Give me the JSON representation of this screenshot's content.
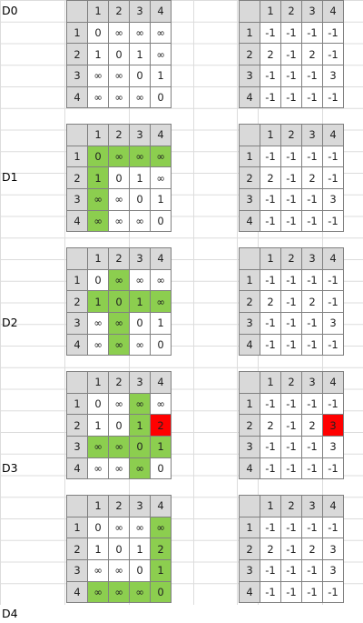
{
  "labels": [
    "D0",
    "D1",
    "D2",
    "D3",
    "D4"
  ],
  "headers": [
    "1",
    "2",
    "3",
    "4"
  ],
  "colors": {
    "header_bg": "#d9d9d9",
    "highlight_green": "#8cce4f",
    "highlight_red": "#ff0000",
    "grid_line": "#808080"
  },
  "blocks": [
    {
      "label": "D0",
      "dist": [
        [
          "0",
          "∞",
          "∞",
          "∞"
        ],
        [
          "1",
          "0",
          "1",
          "∞"
        ],
        [
          "∞",
          "∞",
          "0",
          "1"
        ],
        [
          "∞",
          "∞",
          "∞",
          "0"
        ]
      ],
      "path": [
        [
          "-1",
          "-1",
          "-1",
          "-1"
        ],
        [
          "2",
          "-1",
          "2",
          "-1"
        ],
        [
          "-1",
          "-1",
          "-1",
          "3"
        ],
        [
          "-1",
          "-1",
          "-1",
          "-1"
        ]
      ],
      "green": [],
      "red_dist": [],
      "red_path": []
    },
    {
      "label": "D1",
      "dist": [
        [
          "0",
          "∞",
          "∞",
          "∞"
        ],
        [
          "1",
          "0",
          "1",
          "∞"
        ],
        [
          "∞",
          "∞",
          "0",
          "1"
        ],
        [
          "∞",
          "∞",
          "∞",
          "0"
        ]
      ],
      "path": [
        [
          "-1",
          "-1",
          "-1",
          "-1"
        ],
        [
          "2",
          "-1",
          "2",
          "-1"
        ],
        [
          "-1",
          "-1",
          "-1",
          "3"
        ],
        [
          "-1",
          "-1",
          "-1",
          "-1"
        ]
      ],
      "green": [
        [
          0,
          0
        ],
        [
          0,
          1
        ],
        [
          0,
          2
        ],
        [
          0,
          3
        ],
        [
          1,
          0
        ],
        [
          2,
          0
        ],
        [
          3,
          0
        ]
      ],
      "red_dist": [],
      "red_path": []
    },
    {
      "label": "D2",
      "dist": [
        [
          "0",
          "∞",
          "∞",
          "∞"
        ],
        [
          "1",
          "0",
          "1",
          "∞"
        ],
        [
          "∞",
          "∞",
          "0",
          "1"
        ],
        [
          "∞",
          "∞",
          "∞",
          "0"
        ]
      ],
      "path": [
        [
          "-1",
          "-1",
          "-1",
          "-1"
        ],
        [
          "2",
          "-1",
          "2",
          "-1"
        ],
        [
          "-1",
          "-1",
          "-1",
          "3"
        ],
        [
          "-1",
          "-1",
          "-1",
          "-1"
        ]
      ],
      "green": [
        [
          0,
          1
        ],
        [
          1,
          0
        ],
        [
          1,
          1
        ],
        [
          1,
          2
        ],
        [
          1,
          3
        ],
        [
          2,
          1
        ],
        [
          3,
          1
        ]
      ],
      "red_dist": [],
      "red_path": []
    },
    {
      "label": "D3",
      "dist": [
        [
          "0",
          "∞",
          "∞",
          "∞"
        ],
        [
          "1",
          "0",
          "1",
          "2"
        ],
        [
          "∞",
          "∞",
          "0",
          "1"
        ],
        [
          "∞",
          "∞",
          "∞",
          "0"
        ]
      ],
      "path": [
        [
          "-1",
          "-1",
          "-1",
          "-1"
        ],
        [
          "2",
          "-1",
          "2",
          "3"
        ],
        [
          "-1",
          "-1",
          "-1",
          "3"
        ],
        [
          "-1",
          "-1",
          "-1",
          "-1"
        ]
      ],
      "green": [
        [
          0,
          2
        ],
        [
          1,
          2
        ],
        [
          2,
          0
        ],
        [
          2,
          1
        ],
        [
          2,
          2
        ],
        [
          2,
          3
        ],
        [
          3,
          2
        ]
      ],
      "red_dist": [
        [
          1,
          3
        ]
      ],
      "red_path": [
        [
          1,
          3
        ]
      ]
    },
    {
      "label": "D4",
      "dist": [
        [
          "0",
          "∞",
          "∞",
          "∞"
        ],
        [
          "1",
          "0",
          "1",
          "2"
        ],
        [
          "∞",
          "∞",
          "0",
          "1"
        ],
        [
          "∞",
          "∞",
          "∞",
          "0"
        ]
      ],
      "path": [
        [
          "-1",
          "-1",
          "-1",
          "-1"
        ],
        [
          "2",
          "-1",
          "2",
          "3"
        ],
        [
          "-1",
          "-1",
          "-1",
          "3"
        ],
        [
          "-1",
          "-1",
          "-1",
          "-1"
        ]
      ],
      "green": [
        [
          0,
          3
        ],
        [
          1,
          3
        ],
        [
          2,
          3
        ],
        [
          3,
          0
        ],
        [
          3,
          1
        ],
        [
          3,
          2
        ],
        [
          3,
          3
        ]
      ],
      "red_dist": [],
      "red_path": []
    }
  ]
}
